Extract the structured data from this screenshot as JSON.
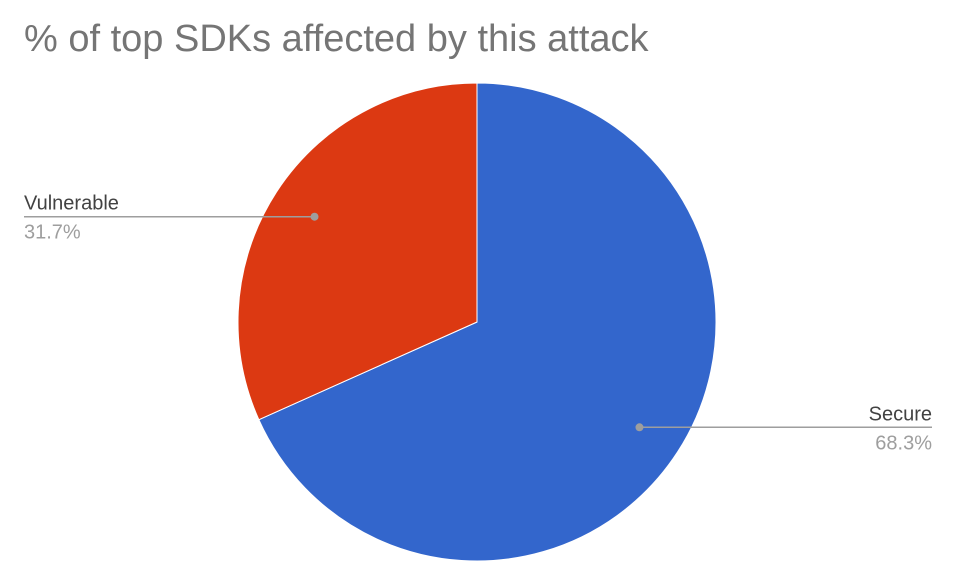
{
  "chart_data": {
    "type": "pie",
    "title": "% of top SDKs affected by this attack",
    "slices": [
      {
        "label": "Secure",
        "value": 68.3,
        "percent_label": "68.3%",
        "color": "#3366cc"
      },
      {
        "label": "Vulnerable",
        "value": 31.7,
        "percent_label": "31.7%",
        "color": "#dc3912"
      }
    ],
    "start_angle_deg": 0,
    "direction": "clockwise",
    "legend": "none"
  }
}
